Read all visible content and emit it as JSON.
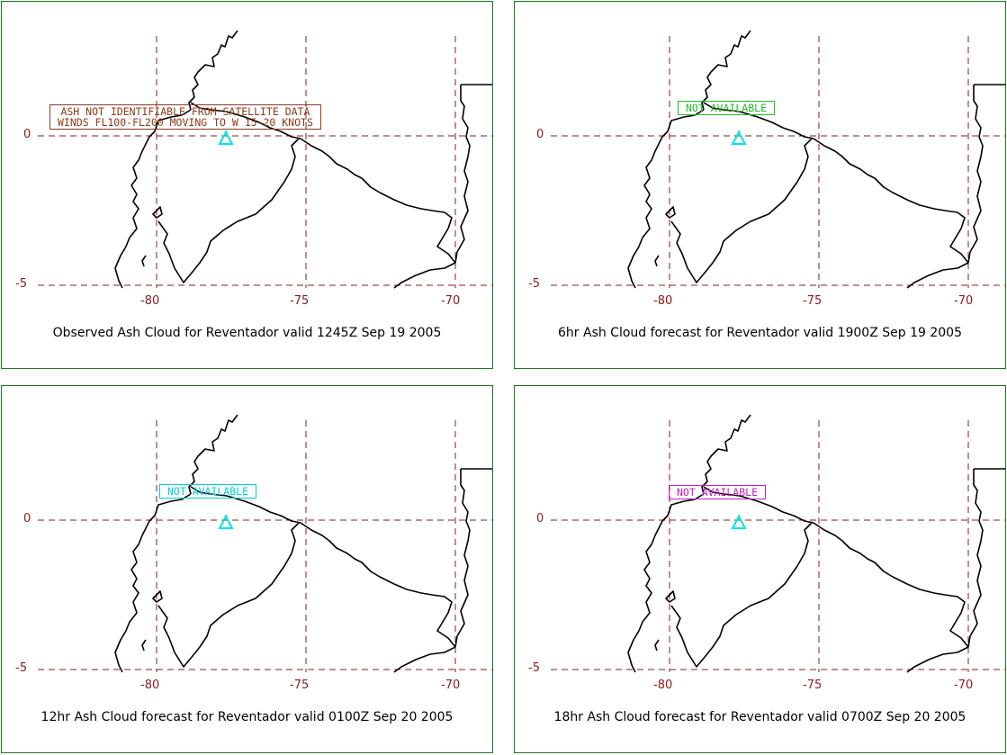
{
  "axes": {
    "lat_labels": [
      "0",
      "-5"
    ],
    "lon_labels": [
      "-80",
      "-75",
      "-70"
    ]
  },
  "volcano_icon": "cyan-triangle-volcano-icon",
  "colors": {
    "grid": "#8b1a1a",
    "coast": "#000000",
    "volcano": "#00e5e5",
    "panel_border": "#1a7a1a"
  },
  "panels": [
    {
      "caption": "Observed Ash Cloud for Reventador valid 1245Z Sep 19 2005",
      "notice_line1": "ASH NOT IDENTIFIABLE FROM SATELLITE DATA",
      "notice_line2": "WINDS FL100-FL200 MOVING TO W 15-20 KNOTS",
      "notice_color": "#8b3a1a"
    },
    {
      "caption": "6hr Ash Cloud forecast for Reventador valid 1900Z Sep 19 2005",
      "notice_line1": "NOT AVAILABLE",
      "notice_color": "#22bb22"
    },
    {
      "caption": "12hr Ash Cloud forecast for Reventador valid 0100Z Sep 20 2005",
      "notice_line1": "NOT AVAILABLE",
      "notice_color": "#00d0d8"
    },
    {
      "caption": "18hr Ash Cloud forecast for Reventador valid 0700Z Sep 20 2005",
      "notice_line1": "NOT AVAILABLE",
      "notice_color": "#c020c0"
    }
  ]
}
